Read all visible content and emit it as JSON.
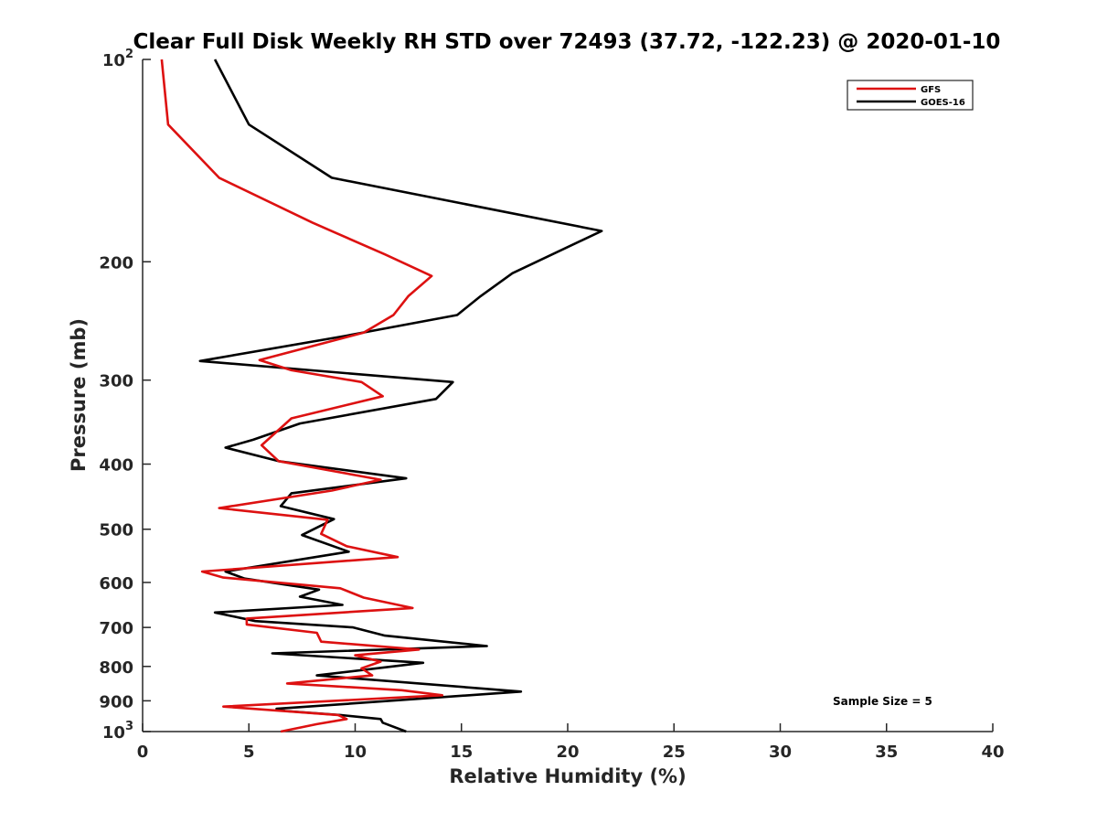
{
  "chart_data": {
    "type": "line",
    "title": "Clear Full Disk Weekly RH STD over 72493 (37.72, -122.23) @ 2020-01-10",
    "xlabel": "Relative Humidity (%)",
    "ylabel": "Pressure (mb)",
    "xlim": [
      0,
      40
    ],
    "ylim": [
      100,
      1000
    ],
    "yscale": "log",
    "y_reversed": true,
    "grid": false,
    "legend_position": "top-right",
    "x_ticks": [
      "0",
      "5",
      "10",
      "15",
      "20",
      "25",
      "30",
      "35",
      "40"
    ],
    "y_ticks": [
      {
        "value": 100,
        "base": "10",
        "exp": "2"
      },
      {
        "value": 200,
        "label": "200"
      },
      {
        "value": 300,
        "label": "300"
      },
      {
        "value": 400,
        "label": "400"
      },
      {
        "value": 500,
        "label": "500"
      },
      {
        "value": 600,
        "label": "600"
      },
      {
        "value": 700,
        "label": "700"
      },
      {
        "value": 800,
        "label": "800"
      },
      {
        "value": 900,
        "label": "900"
      },
      {
        "value": 1000,
        "base": "10",
        "exp": "3"
      }
    ],
    "annotation": "Sample Size = 5",
    "series": [
      {
        "name": "GFS",
        "color": "#dd1111",
        "points": [
          [
            0.9,
            100
          ],
          [
            1.2,
            125
          ],
          [
            3.6,
            150
          ],
          [
            8.0,
            175
          ],
          [
            11.4,
            195
          ],
          [
            13.6,
            210
          ],
          [
            12.5,
            225
          ],
          [
            11.8,
            240
          ],
          [
            10.4,
            255
          ],
          [
            5.5,
            280
          ],
          [
            7.0,
            290
          ],
          [
            10.3,
            302
          ],
          [
            11.3,
            317
          ],
          [
            7.0,
            342
          ],
          [
            5.6,
            375
          ],
          [
            6.4,
            396
          ],
          [
            11.2,
            422
          ],
          [
            8.9,
            438
          ],
          [
            3.6,
            465
          ],
          [
            8.7,
            484
          ],
          [
            8.4,
            508
          ],
          [
            9.6,
            530
          ],
          [
            12.0,
            550
          ],
          [
            2.8,
            578
          ],
          [
            3.8,
            590
          ],
          [
            9.3,
            612
          ],
          [
            10.4,
            632
          ],
          [
            12.7,
            655
          ],
          [
            4.9,
            679
          ],
          [
            4.9,
            693
          ],
          [
            8.2,
            713
          ],
          [
            8.4,
            735
          ],
          [
            13.0,
            755
          ],
          [
            10.0,
            770
          ],
          [
            11.2,
            787
          ],
          [
            10.3,
            805
          ],
          [
            10.8,
            825
          ],
          [
            6.8,
            848
          ],
          [
            12.2,
            868
          ],
          [
            14.1,
            883
          ],
          [
            3.8,
            918
          ],
          [
            9.2,
            945
          ],
          [
            9.6,
            958
          ],
          [
            8.2,
            975
          ],
          [
            6.5,
            1000
          ]
        ]
      },
      {
        "name": "GOES-16",
        "color": "#000000",
        "points": [
          [
            3.4,
            100
          ],
          [
            5.0,
            125
          ],
          [
            8.9,
            150
          ],
          [
            21.6,
            180
          ],
          [
            17.4,
            208
          ],
          [
            15.9,
            225
          ],
          [
            14.8,
            240
          ],
          [
            9.5,
            258
          ],
          [
            2.7,
            281
          ],
          [
            14.6,
            302
          ],
          [
            13.8,
            320
          ],
          [
            7.4,
            348
          ],
          [
            5.2,
            368
          ],
          [
            3.9,
            378
          ],
          [
            6.4,
            396
          ],
          [
            12.4,
            420
          ],
          [
            7.0,
            442
          ],
          [
            6.5,
            462
          ],
          [
            9.0,
            483
          ],
          [
            7.5,
            510
          ],
          [
            9.7,
            540
          ],
          [
            3.9,
            578
          ],
          [
            4.8,
            592
          ],
          [
            8.3,
            615
          ],
          [
            7.4,
            630
          ],
          [
            9.4,
            648
          ],
          [
            3.4,
            665
          ],
          [
            5.3,
            685
          ],
          [
            9.9,
            700
          ],
          [
            11.4,
            720
          ],
          [
            16.2,
            746
          ],
          [
            6.1,
            765
          ],
          [
            13.2,
            790
          ],
          [
            8.2,
            825
          ],
          [
            17.8,
            872
          ],
          [
            6.3,
            925
          ],
          [
            6.7,
            932
          ],
          [
            9.3,
            945
          ],
          [
            11.2,
            958
          ],
          [
            11.3,
            970
          ],
          [
            12.4,
            1000
          ]
        ]
      }
    ]
  }
}
